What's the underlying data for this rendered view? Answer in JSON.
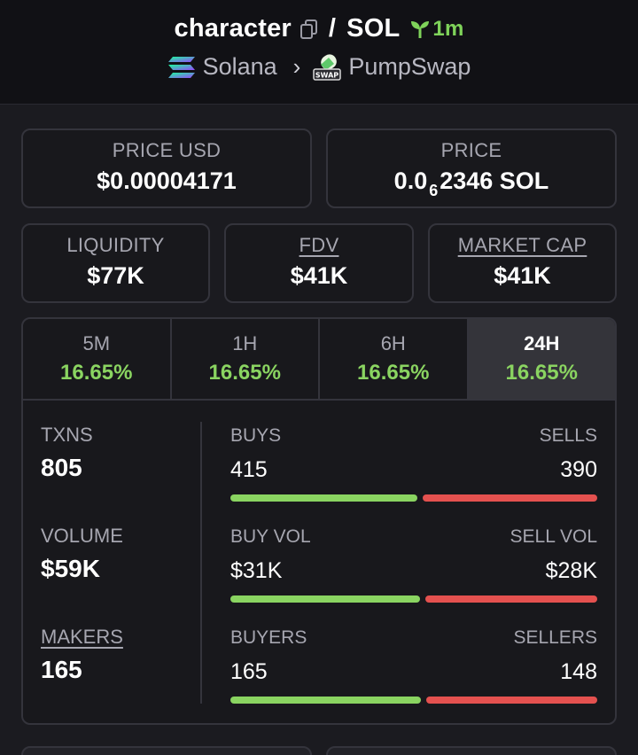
{
  "header": {
    "token": "character",
    "separator": "/",
    "quote": "SOL",
    "age": "1m",
    "chain": "Solana",
    "chevron": "›",
    "dex": "PumpSwap",
    "icons": [
      "copy-icon",
      "seedling-icon",
      "solana-icon",
      "pumpswap-icon",
      "chevron-right-icon"
    ]
  },
  "price_usd": {
    "label": "PRICE USD",
    "value": "$0.00004171"
  },
  "price": {
    "label": "PRICE",
    "value_prefix": "0.0",
    "value_zeros": "6",
    "value_suffix": "2346 SOL"
  },
  "liquidity": {
    "label": "LIQUIDITY",
    "value": "$77K"
  },
  "fdv": {
    "label": "FDV",
    "value": "$41K"
  },
  "market_cap": {
    "label": "MARKET CAP",
    "value": "$41K"
  },
  "tabs": [
    {
      "label": "5M",
      "change": "16.65%"
    },
    {
      "label": "1H",
      "change": "16.65%"
    },
    {
      "label": "6H",
      "change": "16.65%"
    },
    {
      "label": "24H",
      "change": "16.65%",
      "active": true
    }
  ],
  "metrics": {
    "txns": {
      "label": "TXNS",
      "value": "805"
    },
    "volume": {
      "label": "VOLUME",
      "value": "$59K"
    },
    "makers": {
      "label": "MAKERS",
      "value": "165"
    }
  },
  "splits": {
    "buys": {
      "left_label": "BUYS",
      "left_value": "415",
      "right_label": "SELLS",
      "right_value": "390",
      "left_fraction": 0.516
    },
    "volume": {
      "left_label": "BUY VOL",
      "left_value": "$31K",
      "right_label": "SELL VOL",
      "right_value": "$28K",
      "left_fraction": 0.525
    },
    "makers": {
      "left_label": "BUYERS",
      "left_value": "165",
      "right_label": "SELLERS",
      "right_value": "148",
      "left_fraction": 0.527
    }
  },
  "colors": {
    "positive": "#8ad461",
    "negative": "#e4514f",
    "background": "#1b1b20"
  }
}
